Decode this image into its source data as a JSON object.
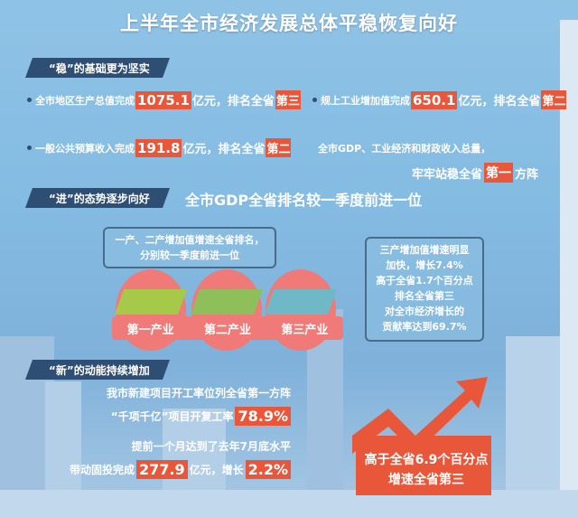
{
  "title": "上半年全市经济发展总体平稳恢复向好",
  "section1": {
    "header": "“稳”的基础更为坚实",
    "gdp": {
      "pre": "全市地区生产总值完成",
      "value": "1075.1",
      "post": "亿元，排名全省",
      "rank": "第三"
    },
    "industry": {
      "pre": "规上工业增加值完成",
      "value": "650.1",
      "post": "亿元，排名全省",
      "rank": "第二"
    },
    "revenue": {
      "pre": "一般公共预算收入完成",
      "value": "191.8",
      "post": "亿元，排名全省",
      "rank": "第二"
    },
    "summary1": "全市GDP、工业经济和财政收入总量，",
    "summary2_pre": "牢牢站稳全省",
    "summary2_rank": "第一",
    "summary2_post": "方阵"
  },
  "section2": {
    "header": "“进”的态势逐步向好",
    "headline": "全市GDP全省排名较一季度前进一位",
    "bubble_left": [
      "一产、二产增加值增速全省排名，",
      "分别较一季度前进一位"
    ],
    "industries": [
      "第一产业",
      "第二产业",
      "第三产业"
    ],
    "bubble_right": [
      "三产增加值增速明显",
      "加快，增长7.4%",
      "高于全省1.7个百分点",
      "排名全省第三",
      "对全市经济增长的",
      "贡献率达到69.7%"
    ]
  },
  "section3": {
    "header": "“新”的动能持续增加",
    "line1": "我市新建项目开工率位列全省第一方阵",
    "line2_pre": "“千项千亿”项目开复工率",
    "line2_value": "78.9%",
    "line3": "提前一个月达到了去年7月底水平",
    "line4_pre": "带动固投完成",
    "line4_value": "277.9",
    "line4_mid": "亿元，增长",
    "line4_value2": "2.2%",
    "arrow_text1": "高于全省6.9个百分点",
    "arrow_text2": "增速全省第三"
  },
  "colors": {
    "accent": "#e8573a",
    "header_bg": "#2e4e74",
    "circle": "#f07a78"
  }
}
